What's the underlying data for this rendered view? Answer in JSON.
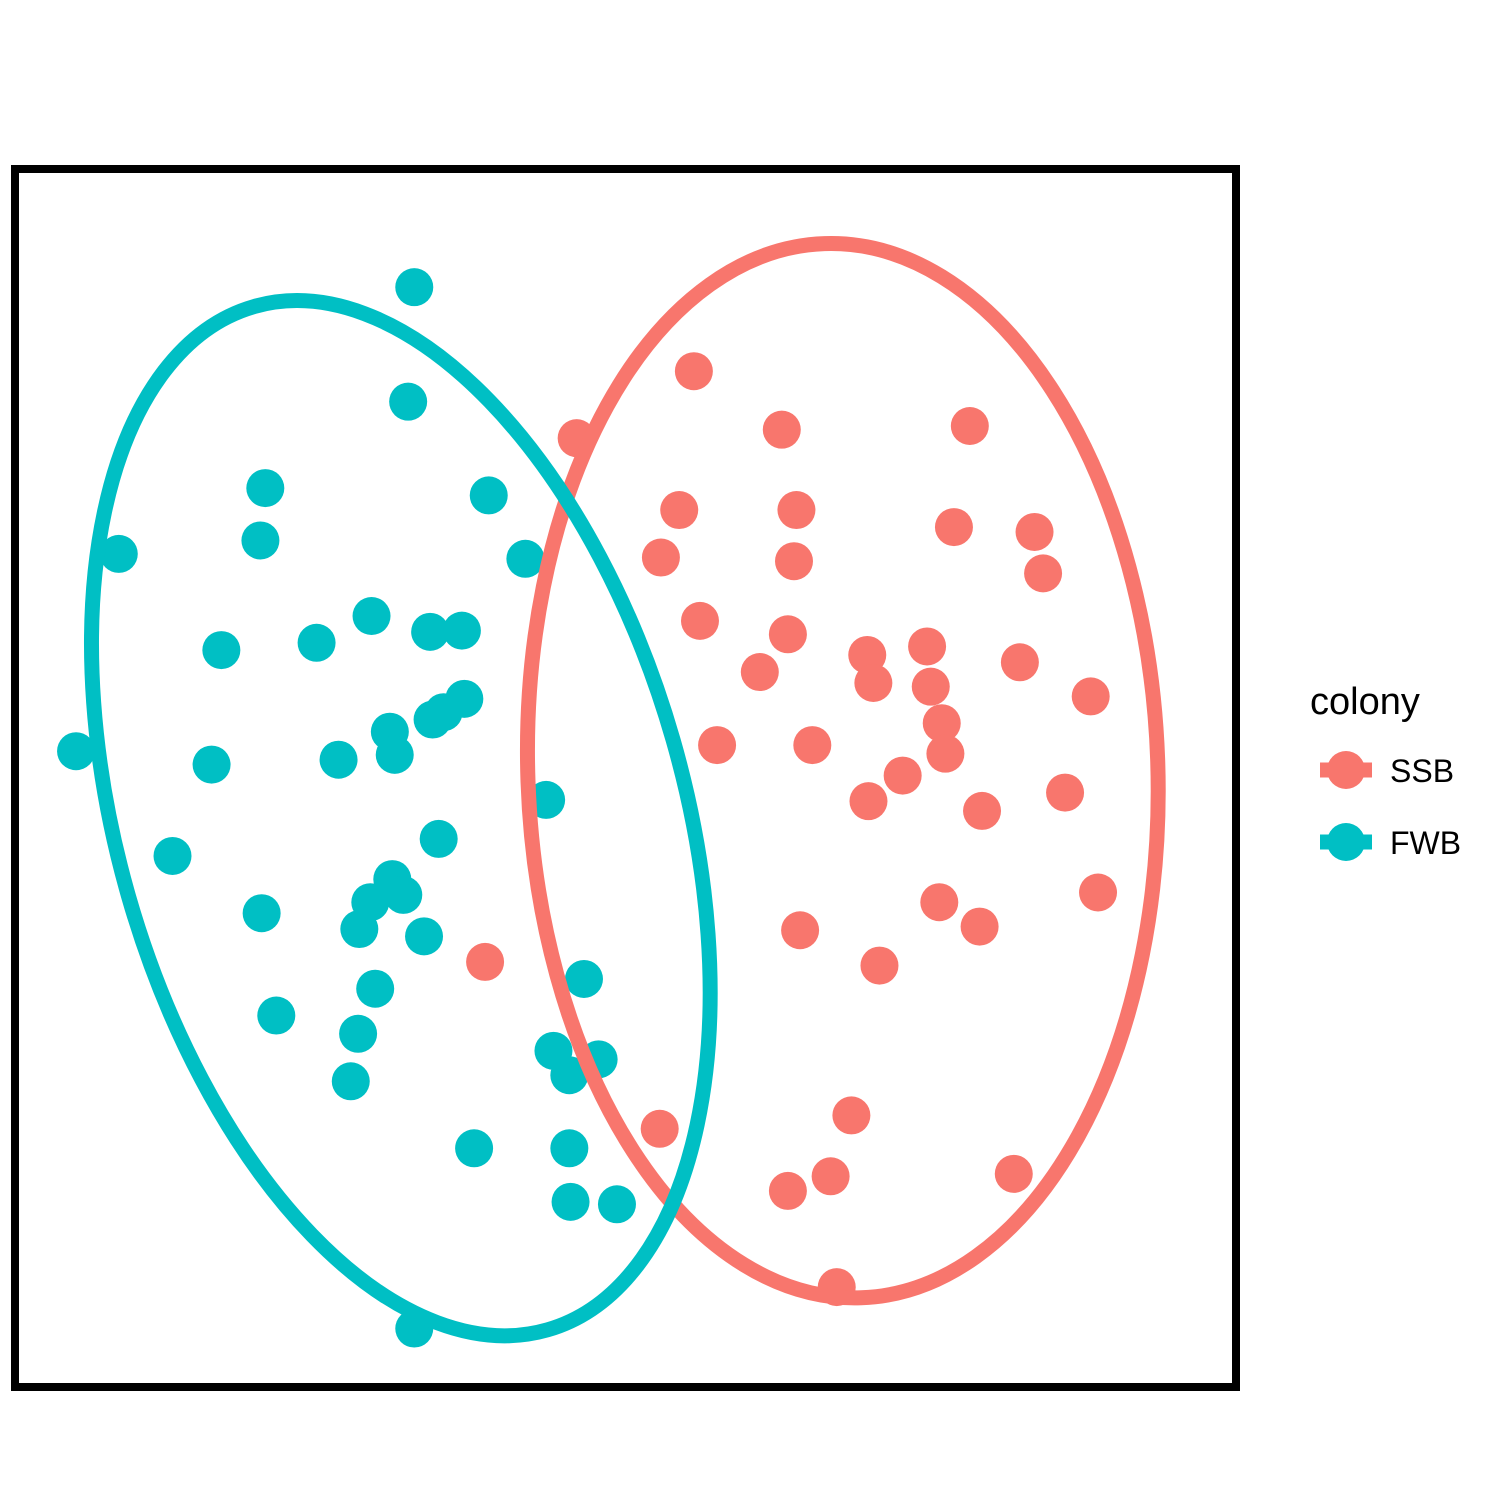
{
  "chart_data": {
    "type": "scatter",
    "title": "",
    "xlabel": "",
    "ylabel": "",
    "axes_visible": false,
    "grid": false,
    "xlim": [
      0,
      100
    ],
    "ylim": [
      0,
      100
    ],
    "legend": {
      "title": "colony",
      "placement": "right",
      "entries": [
        "SSB",
        "FWB"
      ]
    },
    "series": [
      {
        "name": "SSB",
        "color": "#F8766D",
        "ellipse": {
          "cx": 67.8,
          "cy": 50.6,
          "rx": 25.8,
          "ry": 43.3,
          "rotation_deg": 2
        },
        "points": [
          [
            46.0,
            77.9
          ],
          [
            55.6,
            83.4
          ],
          [
            62.8,
            78.6
          ],
          [
            78.2,
            78.9
          ],
          [
            54.4,
            72.0
          ],
          [
            64.0,
            72.0
          ],
          [
            52.9,
            68.1
          ],
          [
            63.8,
            67.8
          ],
          [
            76.9,
            70.6
          ],
          [
            83.5,
            70.2
          ],
          [
            84.2,
            66.8
          ],
          [
            56.1,
            62.9
          ],
          [
            63.3,
            61.8
          ],
          [
            61.0,
            58.7
          ],
          [
            69.8,
            60.1
          ],
          [
            74.7,
            60.8
          ],
          [
            70.3,
            57.8
          ],
          [
            75.0,
            57.5
          ],
          [
            82.3,
            59.5
          ],
          [
            88.1,
            56.7
          ],
          [
            57.5,
            52.7
          ],
          [
            65.3,
            52.7
          ],
          [
            75.9,
            54.5
          ],
          [
            76.2,
            52.0
          ],
          [
            72.7,
            50.2
          ],
          [
            69.9,
            48.1
          ],
          [
            79.2,
            47.3
          ],
          [
            86.0,
            48.8
          ],
          [
            75.7,
            39.8
          ],
          [
            88.7,
            40.6
          ],
          [
            64.3,
            37.5
          ],
          [
            79.0,
            37.8
          ],
          [
            70.8,
            34.6
          ],
          [
            38.5,
            34.9
          ],
          [
            68.5,
            22.3
          ],
          [
            52.8,
            21.2
          ],
          [
            66.8,
            17.3
          ],
          [
            63.3,
            16.1
          ],
          [
            81.8,
            17.5
          ],
          [
            67.3,
            8.2
          ]
        ]
      },
      {
        "name": "FWB",
        "color": "#00BFC4",
        "ellipse": {
          "cx": 31.6,
          "cy": 46.7,
          "rx": 23.2,
          "ry": 43.7,
          "rotation_deg": 16
        },
        "points": [
          [
            32.7,
            90.3
          ],
          [
            32.2,
            80.9
          ],
          [
            20.5,
            73.8
          ],
          [
            38.8,
            73.2
          ],
          [
            20.1,
            69.5
          ],
          [
            41.8,
            68.0
          ],
          [
            8.5,
            68.4
          ],
          [
            29.2,
            63.3
          ],
          [
            34.0,
            62.0
          ],
          [
            36.6,
            62.1
          ],
          [
            16.9,
            60.5
          ],
          [
            24.7,
            61.1
          ],
          [
            36.8,
            56.5
          ],
          [
            35.1,
            55.4
          ],
          [
            34.2,
            54.8
          ],
          [
            30.7,
            53.8
          ],
          [
            31.1,
            51.9
          ],
          [
            5.0,
            52.2
          ],
          [
            16.1,
            51.1
          ],
          [
            26.5,
            51.5
          ],
          [
            43.5,
            48.2
          ],
          [
            34.7,
            45.0
          ],
          [
            12.9,
            43.6
          ],
          [
            30.9,
            41.7
          ],
          [
            31.8,
            40.4
          ],
          [
            29.1,
            39.8
          ],
          [
            20.2,
            38.9
          ],
          [
            28.2,
            37.6
          ],
          [
            33.5,
            37.0
          ],
          [
            46.6,
            33.5
          ],
          [
            29.5,
            32.7
          ],
          [
            21.4,
            30.5
          ],
          [
            28.1,
            29.0
          ],
          [
            44.1,
            27.6
          ],
          [
            47.8,
            26.9
          ],
          [
            45.4,
            25.6
          ],
          [
            27.5,
            25.1
          ],
          [
            37.6,
            19.6
          ],
          [
            45.4,
            19.6
          ],
          [
            45.5,
            15.2
          ],
          [
            49.3,
            15.0
          ],
          [
            32.7,
            4.8
          ]
        ]
      }
    ]
  }
}
